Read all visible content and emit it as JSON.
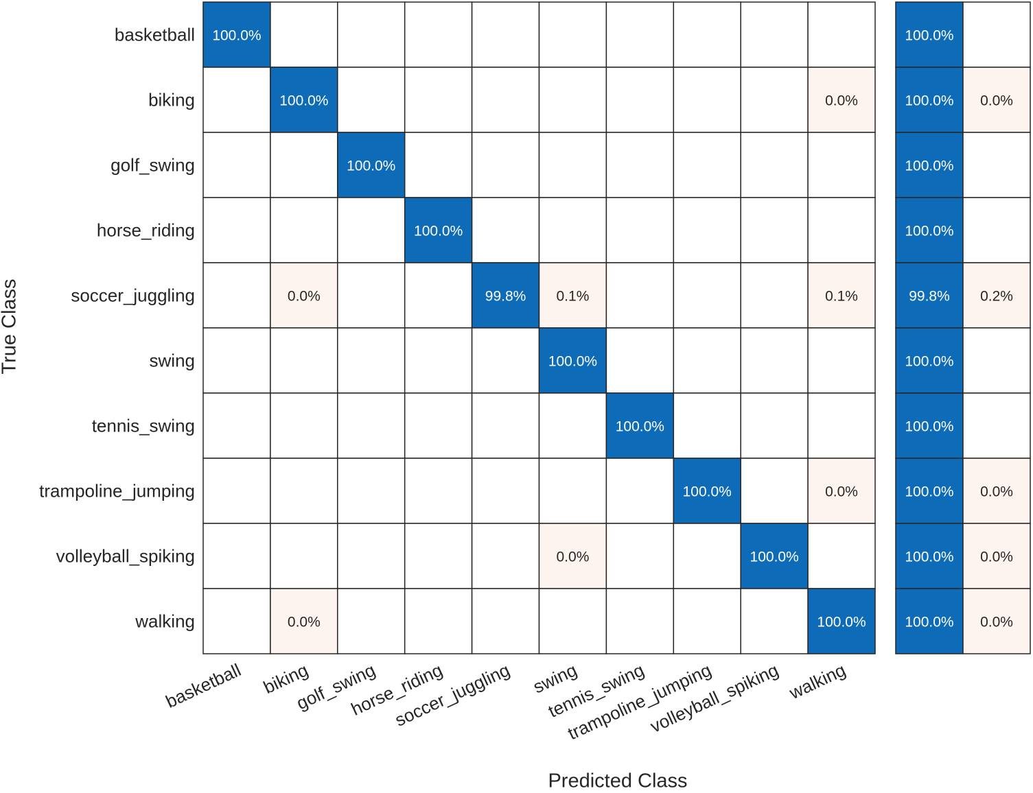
{
  "chart_data": {
    "type": "heatmap",
    "xlabel": "Predicted Class",
    "ylabel": "True Class",
    "classes": [
      "basketball",
      "biking",
      "golf_swing",
      "horse_riding",
      "soccer_juggling",
      "swing",
      "tennis_swing",
      "trampoline_jumping",
      "volleyball_spiking",
      "walking"
    ],
    "cells": [
      [
        "100.0%",
        "",
        "",
        "",
        "",
        "",
        "",
        "",
        "",
        ""
      ],
      [
        "",
        "100.0%",
        "",
        "",
        "",
        "",
        "",
        "",
        "",
        "0.0%"
      ],
      [
        "",
        "",
        "100.0%",
        "",
        "",
        "",
        "",
        "",
        "",
        ""
      ],
      [
        "",
        "",
        "",
        "100.0%",
        "",
        "",
        "",
        "",
        "",
        ""
      ],
      [
        "",
        "0.0%",
        "",
        "",
        "99.8%",
        "0.1%",
        "",
        "",
        "",
        "0.1%"
      ],
      [
        "",
        "",
        "",
        "",
        "",
        "100.0%",
        "",
        "",
        "",
        ""
      ],
      [
        "",
        "",
        "",
        "",
        "",
        "",
        "100.0%",
        "",
        "",
        ""
      ],
      [
        "",
        "",
        "",
        "",
        "",
        "",
        "",
        "100.0%",
        "",
        "0.0%"
      ],
      [
        "",
        "",
        "",
        "",
        "",
        "0.0%",
        "",
        "",
        "100.0%",
        ""
      ],
      [
        "",
        "0.0%",
        "",
        "",
        "",
        "",
        "",
        "",
        "",
        "100.0%"
      ]
    ],
    "row_summary": [
      [
        "100.0%",
        ""
      ],
      [
        "100.0%",
        "0.0%"
      ],
      [
        "100.0%",
        ""
      ],
      [
        "100.0%",
        ""
      ],
      [
        "99.8%",
        "0.2%"
      ],
      [
        "100.0%",
        ""
      ],
      [
        "100.0%",
        ""
      ],
      [
        "100.0%",
        "0.0%"
      ],
      [
        "100.0%",
        "0.0%"
      ],
      [
        "100.0%",
        "0.0%"
      ]
    ],
    "colors": {
      "correct": "#0e6bb8",
      "incorrect": "#fdf4ef",
      "correct_text": "#ffffff",
      "text": "#262626",
      "grid": "#262626"
    }
  }
}
